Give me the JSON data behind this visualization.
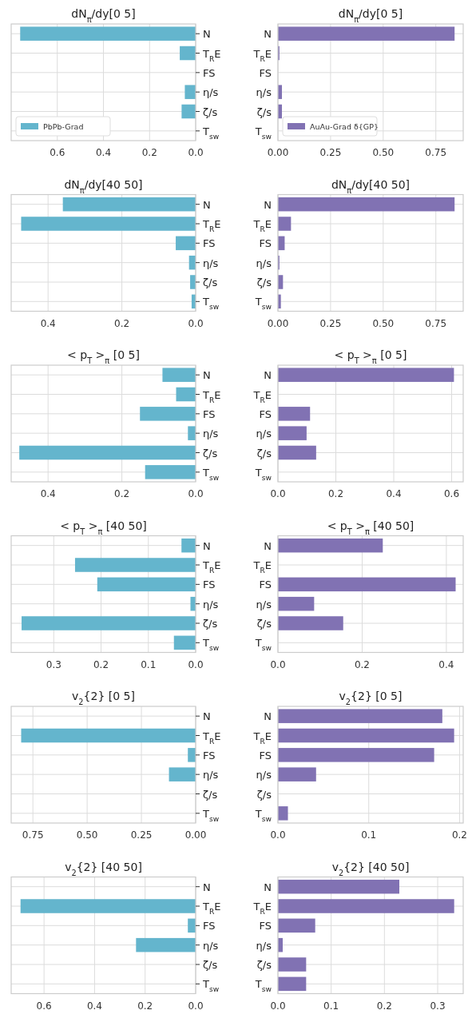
{
  "chart_data": [
    {
      "type": "bar",
      "orientation": "horizontal",
      "title": "dN$_{π}$/dy[0 5]",
      "categories": [
        "N",
        "T$_{R}$E",
        "FS",
        "η/s",
        "ζ/s",
        "T$_{sw}$"
      ],
      "series": [
        {
          "name": "PbPb-Grad",
          "color": "#64b5cd",
          "values": [
            0.761,
            0.069,
            null,
            0.047,
            0.061,
            0
          ]
        }
      ],
      "xlim": [
        0.8,
        0
      ],
      "xticks": [
        {
          "value": 0.6,
          "label": "0.6"
        },
        {
          "value": 0.4,
          "label": "0.4"
        },
        {
          "value": 0.2,
          "label": "0.2"
        },
        {
          "value": 0,
          "label": "0.0"
        }
      ],
      "grid": true,
      "legend": "bottom left"
    },
    {
      "type": "bar",
      "orientation": "horizontal",
      "title": "dN$_{π}$/dy[0 5]",
      "categories": [
        "N",
        "T$_{R}$E",
        "FS",
        "η/s",
        "ζ/s",
        "T$_{sw}$"
      ],
      "series": [
        {
          "name": "AuAu-Grad δ{GP}",
          "color": "#8172b3",
          "values": [
            0.839,
            0.007,
            0,
            0.019,
            0.019,
            0
          ]
        }
      ],
      "xlim": [
        0,
        0.88
      ],
      "xticks": [
        {
          "value": 0,
          "label": "0.00"
        },
        {
          "value": 0.25,
          "label": "0.25"
        },
        {
          "value": 0.5,
          "label": "0.50"
        },
        {
          "value": 0.75,
          "label": "0.75"
        }
      ],
      "grid": true,
      "legend": "bottom left"
    },
    {
      "type": "bar",
      "orientation": "horizontal",
      "title": "dN$_{π}$/dy[40 50]",
      "categories": [
        "N",
        "T$_{R}$E",
        "FS",
        "η/s",
        "ζ/s",
        "T$_{sw}$"
      ],
      "series": [
        {
          "color": "#64b5cd",
          "values": [
            0.36,
            0.473,
            0.054,
            0.018,
            0.015,
            0.011
          ]
        }
      ],
      "xlim": [
        0.5,
        0
      ],
      "xticks": [
        {
          "value": 0.4,
          "label": "0.4"
        },
        {
          "value": 0.2,
          "label": "0.2"
        },
        {
          "value": 0,
          "label": "0.0"
        }
      ],
      "grid": true
    },
    {
      "type": "bar",
      "orientation": "horizontal",
      "title": "dN$_{π}$/dy[40 50]",
      "categories": [
        "N",
        "T$_{R}$E",
        "FS",
        "η/s",
        "ζ/s",
        "T$_{sw}$"
      ],
      "series": [
        {
          "color": "#8172b3",
          "values": [
            0.839,
            0.062,
            0.032,
            0.007,
            0.024,
            0.014
          ]
        }
      ],
      "xlim": [
        0,
        0.88
      ],
      "xticks": [
        {
          "value": 0,
          "label": "0.00"
        },
        {
          "value": 0.25,
          "label": "0.25"
        },
        {
          "value": 0.5,
          "label": "0.50"
        },
        {
          "value": 0.75,
          "label": "0.75"
        }
      ],
      "grid": true
    },
    {
      "type": "bar",
      "orientation": "horizontal",
      "title": "< p$_{T}$ >$_{π}$ [0 5]",
      "categories": [
        "N",
        "T$_{R}$E",
        "FS",
        "η/s",
        "ζ/s",
        "T$_{sw}$"
      ],
      "series": [
        {
          "color": "#64b5cd",
          "values": [
            0.09,
            0.053,
            0.151,
            0.021,
            0.478,
            0.137
          ]
        }
      ],
      "xlim": [
        0.5,
        0
      ],
      "xticks": [
        {
          "value": 0.4,
          "label": "0.4"
        },
        {
          "value": 0.2,
          "label": "0.2"
        },
        {
          "value": 0,
          "label": "0.0"
        }
      ],
      "grid": true
    },
    {
      "type": "bar",
      "orientation": "horizontal",
      "title": "< p$_{T}$ >$_{π}$ [0 5]",
      "categories": [
        "N",
        "T$_{R}$E",
        "FS",
        "η/s",
        "ζ/s",
        "T$_{sw}$"
      ],
      "series": [
        {
          "color": "#8172b3",
          "values": [
            0.608,
            0,
            0.111,
            0.099,
            0.132,
            0
          ]
        }
      ],
      "xlim": [
        0,
        0.64
      ],
      "xticks": [
        {
          "value": 0,
          "label": "0.0"
        },
        {
          "value": 0.2,
          "label": "0.2"
        },
        {
          "value": 0.4,
          "label": "0.4"
        },
        {
          "value": 0.6,
          "label": "0.6"
        }
      ],
      "grid": true
    },
    {
      "type": "bar",
      "orientation": "horizontal",
      "title": "< p$_{T}$ >$_{π}$ [40 50]",
      "categories": [
        "N",
        "T$_{R}$E",
        "FS",
        "η/s",
        "ζ/s",
        "T$_{sw}$"
      ],
      "series": [
        {
          "color": "#64b5cd",
          "values": [
            0.03,
            0.255,
            0.208,
            0.011,
            0.368,
            0.046
          ]
        }
      ],
      "xlim": [
        0.39,
        0
      ],
      "xticks": [
        {
          "value": 0.3,
          "label": "0.3"
        },
        {
          "value": 0.2,
          "label": "0.2"
        },
        {
          "value": 0.1,
          "label": "0.1"
        },
        {
          "value": 0,
          "label": "0.0"
        }
      ],
      "grid": true
    },
    {
      "type": "bar",
      "orientation": "horizontal",
      "title": "< p$_{T}$ >$_{π}$ [40 50]",
      "categories": [
        "N",
        "T$_{R}$E",
        "FS",
        "η/s",
        "ζ/s",
        "T$_{sw}$"
      ],
      "series": [
        {
          "color": "#8172b3",
          "values": [
            0.249,
            0,
            0.422,
            0.086,
            0.155,
            null
          ]
        }
      ],
      "xlim": [
        0,
        0.44
      ],
      "xticks": [
        {
          "value": 0,
          "label": "0.0"
        },
        {
          "value": 0.2,
          "label": "0.2"
        },
        {
          "value": 0.4,
          "label": "0.4"
        }
      ],
      "grid": true
    },
    {
      "type": "bar",
      "orientation": "horizontal",
      "title": "v$_{2}${2} [0 5]",
      "categories": [
        "N",
        "T$_{R}$E",
        "FS",
        "η/s",
        "ζ/s",
        "T$_{sw}$"
      ],
      "series": [
        {
          "color": "#64b5cd",
          "values": [
            0,
            0.804,
            0.036,
            0.123,
            null,
            0
          ]
        }
      ],
      "xlim": [
        0.85,
        0
      ],
      "xticks": [
        {
          "value": 0.75,
          "label": "0.75"
        },
        {
          "value": 0.5,
          "label": "0.50"
        },
        {
          "value": 0.25,
          "label": "0.25"
        },
        {
          "value": 0,
          "label": "0.00"
        }
      ],
      "grid": true
    },
    {
      "type": "bar",
      "orientation": "horizontal",
      "title": "v$_{2}${2} [0 5]",
      "categories": [
        "N",
        "T$_{R}$E",
        "FS",
        "η/s",
        "ζ/s",
        "T$_{sw}$"
      ],
      "series": [
        {
          "color": "#8172b3",
          "values": [
            0.181,
            0.194,
            0.172,
            0.042,
            null,
            0.011
          ]
        }
      ],
      "xlim": [
        0,
        0.204
      ],
      "xticks": [
        {
          "value": 0,
          "label": "0.0"
        },
        {
          "value": 0.1,
          "label": "0.1"
        },
        {
          "value": 0.2,
          "label": "0.2"
        }
      ],
      "grid": true
    },
    {
      "type": "bar",
      "orientation": "horizontal",
      "title": "v$_{2}${2} [40 50]",
      "categories": [
        "N",
        "T$_{R}$E",
        "FS",
        "η/s",
        "ζ/s",
        "T$_{sw}$"
      ],
      "series": [
        {
          "color": "#64b5cd",
          "values": [
            0,
            0.693,
            0.031,
            0.236,
            0,
            0
          ]
        }
      ],
      "xlim": [
        0.73,
        0
      ],
      "xticks": [
        {
          "value": 0.6,
          "label": "0.6"
        },
        {
          "value": 0.4,
          "label": "0.4"
        },
        {
          "value": 0.2,
          "label": "0.2"
        },
        {
          "value": 0,
          "label": "0.0"
        }
      ],
      "grid": true
    },
    {
      "type": "bar",
      "orientation": "horizontal",
      "title": "v$_{2}${2} [40 50]",
      "categories": [
        "N",
        "T$_{R}$E",
        "FS",
        "η/s",
        "ζ/s",
        "T$_{sw}$"
      ],
      "series": [
        {
          "color": "#8172b3",
          "values": [
            0.228,
            0.331,
            0.07,
            0.009,
            0.053,
            0.053
          ]
        }
      ],
      "xlim": [
        0,
        0.348
      ],
      "xticks": [
        {
          "value": 0,
          "label": "0.0"
        },
        {
          "value": 0.1,
          "label": "0.1"
        },
        {
          "value": 0.2,
          "label": "0.2"
        },
        {
          "value": 0.3,
          "label": "0.3"
        }
      ],
      "grid": true
    }
  ]
}
